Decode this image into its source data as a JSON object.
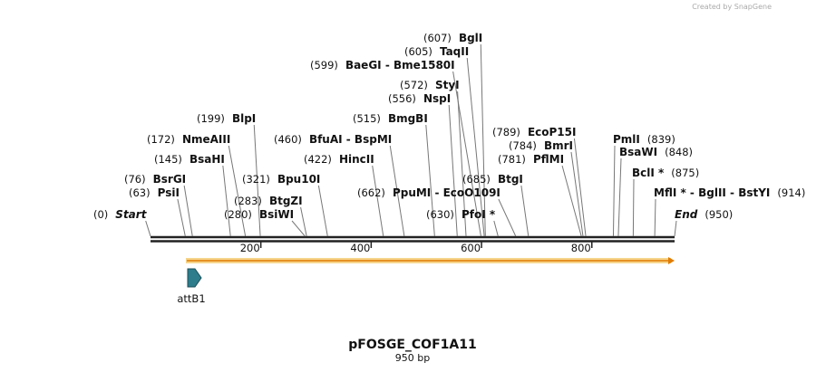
{
  "watermark": "Created by SnapGene",
  "map": {
    "length": {
      "value": 950,
      "label": "950 bp"
    },
    "name": "pFOSGE_COF1A11",
    "start": {
      "name": "Start",
      "position": {
        "value": 0,
        "label": "(0)"
      }
    },
    "end": {
      "name": "End",
      "position": {
        "value": 950,
        "label": "(950)"
      }
    },
    "ruler_ticks": [
      200,
      400,
      600,
      800
    ],
    "enzymes": [
      {
        "name": "PsiI",
        "position": {
          "value": 63,
          "label": "(63)"
        }
      },
      {
        "name": "BsrGI",
        "position": {
          "value": 76,
          "label": "(76)"
        }
      },
      {
        "name": "BsaHI",
        "position": {
          "value": 145,
          "label": "(145)"
        }
      },
      {
        "name": "NmeAIII",
        "position": {
          "value": 172,
          "label": "(172)"
        }
      },
      {
        "name": "BlpI",
        "position": {
          "value": 199,
          "label": "(199)"
        }
      },
      {
        "name": "BsiWI",
        "position": {
          "value": 280,
          "label": "(280)"
        }
      },
      {
        "name": "BtgZI",
        "position": {
          "value": 283,
          "label": "(283)"
        }
      },
      {
        "name": "Bpu10I",
        "position": {
          "value": 321,
          "label": "(321)"
        }
      },
      {
        "name": "HincII",
        "position": {
          "value": 422,
          "label": "(422)"
        }
      },
      {
        "name": "BfuAI  -  BspMI",
        "position": {
          "value": 460,
          "label": "(460)"
        }
      },
      {
        "name": "BmgBI",
        "position": {
          "value": 515,
          "label": "(515)"
        }
      },
      {
        "name": "NspI",
        "position": {
          "value": 556,
          "label": "(556)"
        }
      },
      {
        "name": "StyI",
        "position": {
          "value": 572,
          "label": "(572)"
        }
      },
      {
        "name": "BaeGI  -  Bme1580I",
        "position": {
          "value": 599,
          "label": "(599)"
        }
      },
      {
        "name": "TaqII",
        "position": {
          "value": 605,
          "label": "(605)"
        }
      },
      {
        "name": "BglI",
        "position": {
          "value": 607,
          "label": "(607)"
        }
      },
      {
        "name": "PfoI *",
        "position": {
          "value": 630,
          "label": "(630)"
        }
      },
      {
        "name": "PpuMI  -  EcoO109I",
        "position": {
          "value": 662,
          "label": "(662)"
        }
      },
      {
        "name": "BtgI",
        "position": {
          "value": 685,
          "label": "(685)"
        }
      },
      {
        "name": "PflMI",
        "position": {
          "value": 781,
          "label": "(781)"
        }
      },
      {
        "name": "BmrI",
        "position": {
          "value": 784,
          "label": "(784)"
        }
      },
      {
        "name": "EcoP15I",
        "position": {
          "value": 789,
          "label": "(789)"
        }
      },
      {
        "name": "PmlI",
        "position": {
          "value": 839,
          "label": "(839)"
        }
      },
      {
        "name": "BsaWI",
        "position": {
          "value": 848,
          "label": "(848)"
        }
      },
      {
        "name": "BclI *",
        "position": {
          "value": 875,
          "label": "(875)"
        }
      },
      {
        "name": "MflI *  -  BglII  -  BstYI",
        "position": {
          "value": 914,
          "label": "(914)"
        }
      }
    ],
    "features": [
      {
        "name": "attB1"
      }
    ]
  }
}
